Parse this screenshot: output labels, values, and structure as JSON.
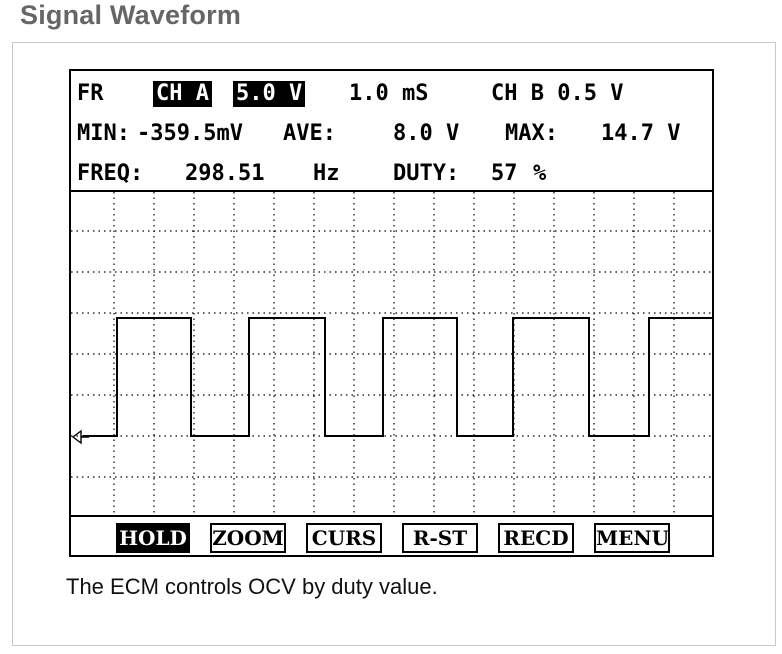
{
  "title": "Signal Waveform",
  "scope": {
    "mode": "FR",
    "channel_a": "CH A",
    "volts_div": "5.0 V",
    "time_div": "1.0 mS",
    "channel_b": "CH B 0.5 V",
    "min_label": "MIN:",
    "min_value": "-359.5mV",
    "ave_label": "AVE:",
    "ave_value": "8.0 V",
    "max_label": "MAX:",
    "max_value": "14.7 V",
    "freq_label": "FREQ:",
    "freq_value": "298.51",
    "freq_unit": "Hz",
    "duty_label": "DUTY:",
    "duty_value": "57",
    "duty_unit": "%"
  },
  "softkeys": [
    "HOLD",
    "ZOOM",
    "CURS",
    "R-ST",
    "RECD",
    "MENU"
  ],
  "active_softkey": "HOLD",
  "caption": "The ECM controls OCV by duty value.",
  "colors": {
    "trace": "#000000",
    "grid": "#000000",
    "background": "#ffffff"
  }
}
